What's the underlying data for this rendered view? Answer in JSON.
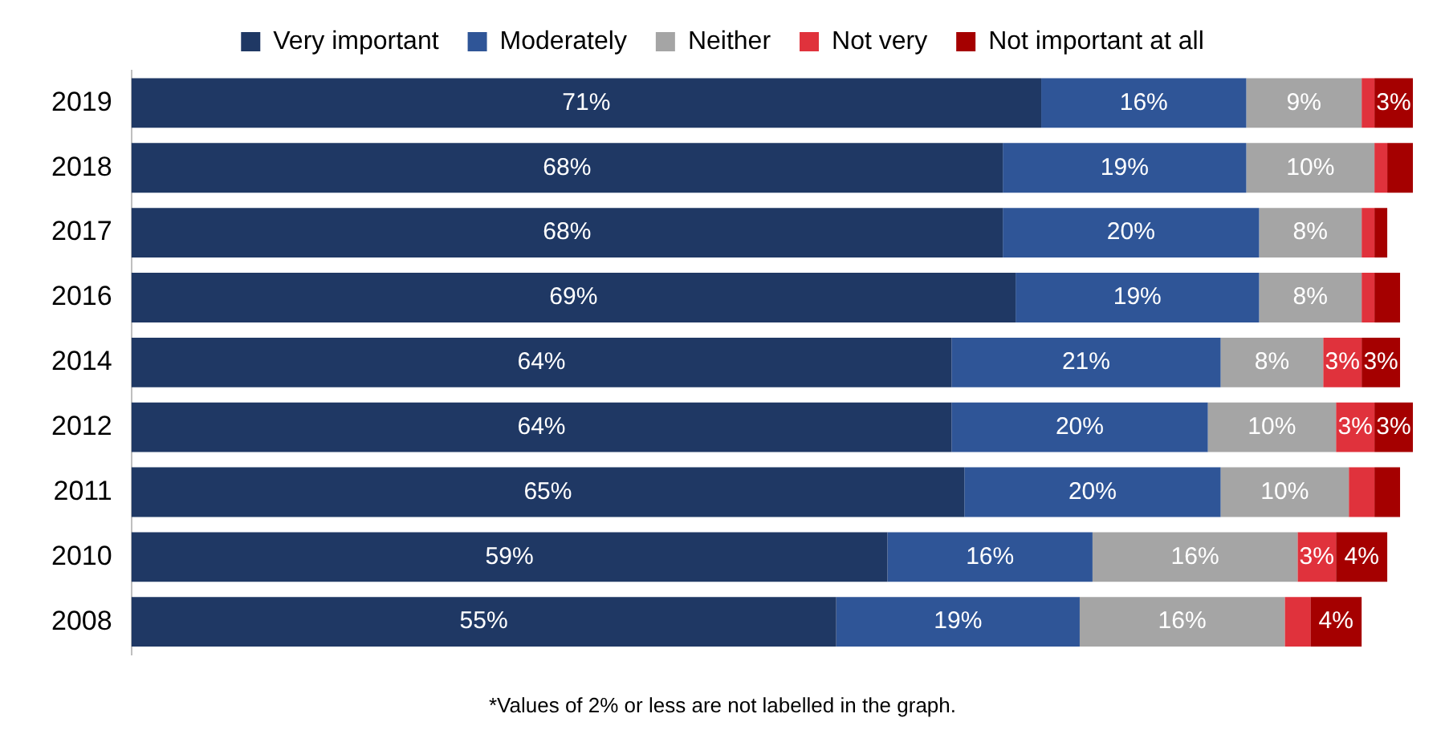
{
  "chart_data": {
    "type": "bar",
    "orientation": "horizontal",
    "stacked": true,
    "legend": "top",
    "grid": false,
    "tick_labels": "y",
    "xlim": [
      0,
      100
    ],
    "categories": [
      "2019",
      "2018",
      "2017",
      "2016",
      "2014",
      "2012",
      "2011",
      "2010",
      "2008"
    ],
    "series": [
      {
        "name": "Very important",
        "color": "#1f3864",
        "values": [
          71,
          68,
          68,
          69,
          64,
          64,
          65,
          59,
          55
        ],
        "value_labels": [
          "71%",
          "68%",
          "68%",
          "69%",
          "64%",
          "64%",
          "65%",
          "59%",
          "55%"
        ]
      },
      {
        "name": "Moderately",
        "color": "#2f5597",
        "values": [
          16,
          19,
          20,
          19,
          21,
          20,
          20,
          16,
          19
        ],
        "value_labels": [
          "16%",
          "19%",
          "20%",
          "19%",
          "21%",
          "20%",
          "20%",
          "16%",
          "19%"
        ]
      },
      {
        "name": "Neither",
        "color": "#a5a5a5",
        "values": [
          9,
          10,
          8,
          8,
          8,
          10,
          10,
          16,
          16
        ],
        "value_labels": [
          "9%",
          "10%",
          "8%",
          "8%",
          "8%",
          "10%",
          "10%",
          "16%",
          "16%"
        ]
      },
      {
        "name": "Not very",
        "color": "#e0323c",
        "values": [
          1,
          1,
          1,
          1,
          3,
          3,
          2,
          3,
          2
        ],
        "value_labels": [
          null,
          null,
          null,
          null,
          "3%",
          "3%",
          null,
          "3%",
          null
        ]
      },
      {
        "name": "Not important at all",
        "color": "#a50000",
        "values": [
          3,
          2,
          1,
          2,
          3,
          3,
          2,
          4,
          4
        ],
        "value_labels": [
          "3%",
          null,
          null,
          null,
          "3%",
          "3%",
          null,
          "4%",
          "4%"
        ]
      }
    ],
    "annotations": [
      "*Values of 2% or less are not labelled in the graph."
    ]
  }
}
